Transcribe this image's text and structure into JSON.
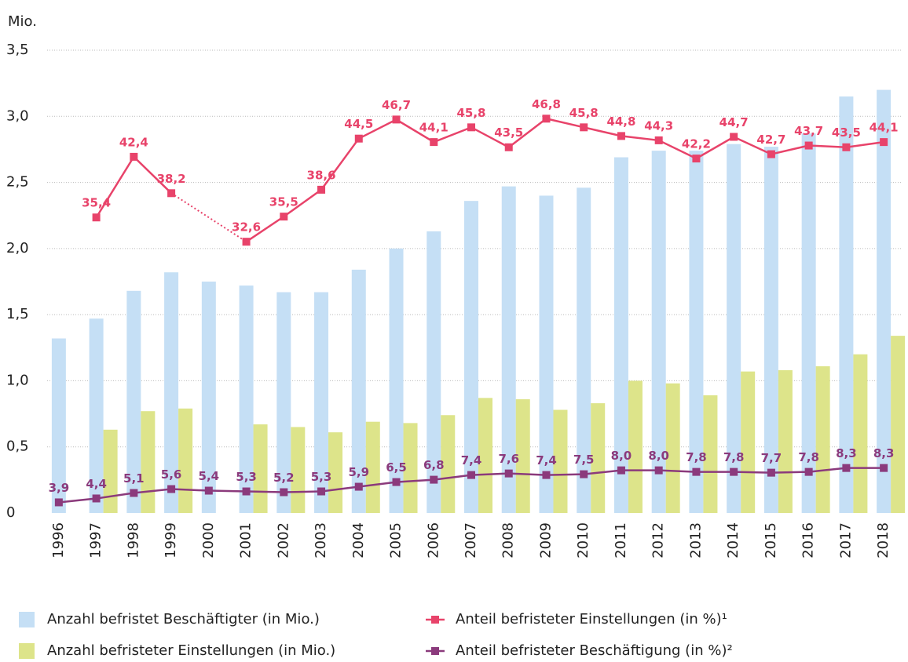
{
  "chart_data": {
    "type": "bar_line",
    "y_label": "Mio.",
    "categories": [
      "1996",
      "1997",
      "1998",
      "1999",
      "2000",
      "2001",
      "2002",
      "2003",
      "2004",
      "2005",
      "2006",
      "2007",
      "2008",
      "2009",
      "2010",
      "2011",
      "2012",
      "2013",
      "2014",
      "2015",
      "2016",
      "2017",
      "2018"
    ],
    "ylim": [
      0,
      3.5
    ],
    "yticks": [
      0,
      {
        "value": 0.5,
        "label": "0,5"
      },
      {
        "value": 1,
        "label": "1,0"
      },
      {
        "value": 1.5,
        "label": "1,5"
      },
      {
        "value": 2,
        "label": "2,0"
      },
      {
        "value": 2.5,
        "label": "2,5"
      },
      {
        "value": 3,
        "label": "3,0"
      },
      {
        "value": 3.5,
        "label": "3,5"
      }
    ],
    "grid": true,
    "y2lim": [
      1.3,
      54.7
    ],
    "y3lim": [
      2.54,
      61.8
    ],
    "series": [
      {
        "name": "Anzahl befristet Beschäftigter (in Mio.)",
        "kind": "bar",
        "color": "#c5dff5",
        "values": [
          1.32,
          1.47,
          1.68,
          1.82,
          1.75,
          1.72,
          1.67,
          1.67,
          1.84,
          2.0,
          2.13,
          2.36,
          2.47,
          2.4,
          2.46,
          2.69,
          2.74,
          2.74,
          2.79,
          2.77,
          2.87,
          3.15,
          3.2
        ]
      },
      {
        "name": "Anzahl befristeter Einstellungen (in Mio.)",
        "kind": "bar",
        "color": "#dde48a",
        "values": [
          null,
          0.63,
          0.77,
          0.79,
          null,
          0.67,
          0.65,
          0.61,
          0.69,
          0.68,
          0.74,
          0.87,
          0.86,
          0.78,
          0.83,
          1.0,
          0.98,
          0.89,
          1.07,
          1.08,
          1.11,
          1.2,
          1.34
        ]
      },
      {
        "name": "Anteil befristeter Einstellungen (in %)¹",
        "kind": "line",
        "axis": "y2",
        "color": "#e8436a",
        "values": [
          null,
          35.4,
          42.4,
          38.2,
          null,
          32.6,
          35.5,
          38.6,
          44.5,
          46.7,
          44.1,
          45.8,
          43.5,
          46.8,
          45.8,
          44.8,
          44.3,
          42.2,
          44.7,
          42.7,
          43.7,
          43.5,
          44.1
        ],
        "value_labels": [
          null,
          "35,4",
          "42,4",
          "38,2",
          null,
          "32,6",
          "35,5",
          "38,6",
          "44,5",
          "46,7",
          "44,1",
          "45,8",
          "43,5",
          "46,8",
          "45,8",
          "44,8",
          "44,3",
          "42,2",
          "44,7",
          "42,7",
          "43,7",
          "43,5",
          "44,1"
        ]
      },
      {
        "name": "Anteil befristeter Beschäftigung (in %)²",
        "kind": "line",
        "axis": "y3",
        "color": "#8b3a7c",
        "values": [
          3.9,
          4.4,
          5.1,
          5.6,
          5.4,
          5.3,
          5.2,
          5.3,
          5.9,
          6.5,
          6.8,
          7.4,
          7.6,
          7.4,
          7.5,
          8.0,
          8.0,
          7.8,
          7.8,
          7.7,
          7.8,
          8.3,
          8.3
        ],
        "value_labels": [
          "3,9",
          "4,4",
          "5,1",
          "5,6",
          "5,4",
          "5,3",
          "5,2",
          "5,3",
          "5,9",
          "6,5",
          "6,8",
          "7,4",
          "7,6",
          "7,4",
          "7,5",
          "8,0",
          "8,0",
          "7,8",
          "7,8",
          "7,7",
          "7,8",
          "8,3",
          "8,3"
        ]
      }
    ]
  }
}
